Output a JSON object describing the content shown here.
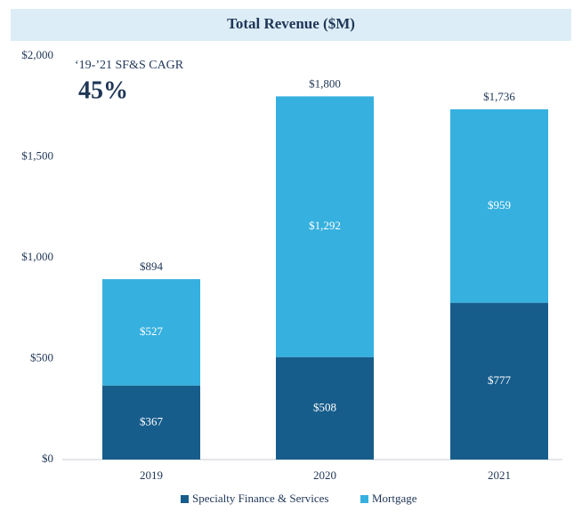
{
  "chart_data": {
    "type": "stacked_bar",
    "title": "Total Revenue ($M)",
    "categories": [
      "2019",
      "2020",
      "2021"
    ],
    "series": [
      {
        "name": "Specialty Finance & Services",
        "color": "#175d8c",
        "values": [
          367,
          508,
          777
        ],
        "value_labels": [
          "$367",
          "$508",
          "$777"
        ]
      },
      {
        "name": "Mortgage",
        "color": "#36b0df",
        "values": [
          527,
          1292,
          959
        ],
        "value_labels": [
          "$527",
          "$1,292",
          "$959"
        ]
      }
    ],
    "totals": [
      894,
      1800,
      1736
    ],
    "total_labels": [
      "$894",
      "$1,800",
      "$1,736"
    ],
    "ylim": [
      0,
      2000
    ],
    "yticks": [
      {
        "value": 0,
        "label": "$0"
      },
      {
        "value": 500,
        "label": "$500"
      },
      {
        "value": 1000,
        "label": "$1,000"
      },
      {
        "value": 1500,
        "label": "$1,500"
      },
      {
        "value": 2000,
        "label": "$2,000"
      }
    ],
    "grid": false,
    "legend": "bottom",
    "annotations": [
      "‘19-’21 SF&S CAGR",
      "45%"
    ]
  }
}
